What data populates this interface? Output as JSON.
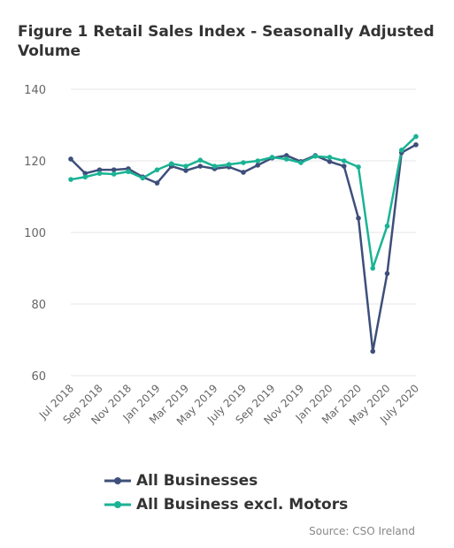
{
  "chart_data": {
    "type": "line",
    "title": "Figure 1 Retail Sales Index - Seasonally Adjusted Volume",
    "x": [
      "Jul 2018",
      "Aug 2018",
      "Sep 2018",
      "Oct 2018",
      "Nov 2018",
      "Dec 2018",
      "Jan 2019",
      "Feb 2019",
      "Mar 2019",
      "Apr 2019",
      "May 2019",
      "Jun 2019",
      "July 2019",
      "Aug 2019",
      "Sep 2019",
      "Oct 2019",
      "Nov 2019",
      "Dec 2019",
      "Jan 2020",
      "Feb 2020",
      "Mar 2020",
      "Apr 2020",
      "May 2020",
      "Jun 2020",
      "July 2020"
    ],
    "x_tick_labels": [
      "Jul 2018",
      "Sep 2018",
      "Nov 2018",
      "Jan 2019",
      "Mar 2019",
      "May 2019",
      "July 2019",
      "Sep 2019",
      "Nov 2019",
      "Jan 2020",
      "Mar 2020",
      "May 2020",
      "July 2020"
    ],
    "ylim": [
      60,
      140
    ],
    "y_ticks": [
      60,
      80,
      100,
      120,
      140
    ],
    "grid": true,
    "legend_position": "bottom",
    "series": [
      {
        "name": "All Businesses",
        "color": "#3d4f7a",
        "values": [
          120.5,
          116.5,
          117.5,
          117.5,
          117.8,
          115.5,
          113.8,
          118.5,
          117.3,
          118.5,
          117.8,
          118.3,
          116.8,
          118.8,
          120.8,
          121.5,
          119.8,
          121.5,
          119.8,
          118.5,
          104,
          66.8,
          88.5,
          122.3,
          124.5
        ]
      },
      {
        "name": "All Business excl. Motors",
        "color": "#1ab394",
        "values": [
          114.8,
          115.5,
          116.5,
          116.3,
          117,
          115.2,
          117.5,
          119.2,
          118.5,
          120.2,
          118.5,
          119,
          119.5,
          120,
          121,
          120.5,
          119.5,
          121.3,
          121,
          120,
          118.3,
          90,
          101.8,
          123,
          126.8
        ]
      }
    ]
  },
  "source": "Source: CSO Ireland"
}
